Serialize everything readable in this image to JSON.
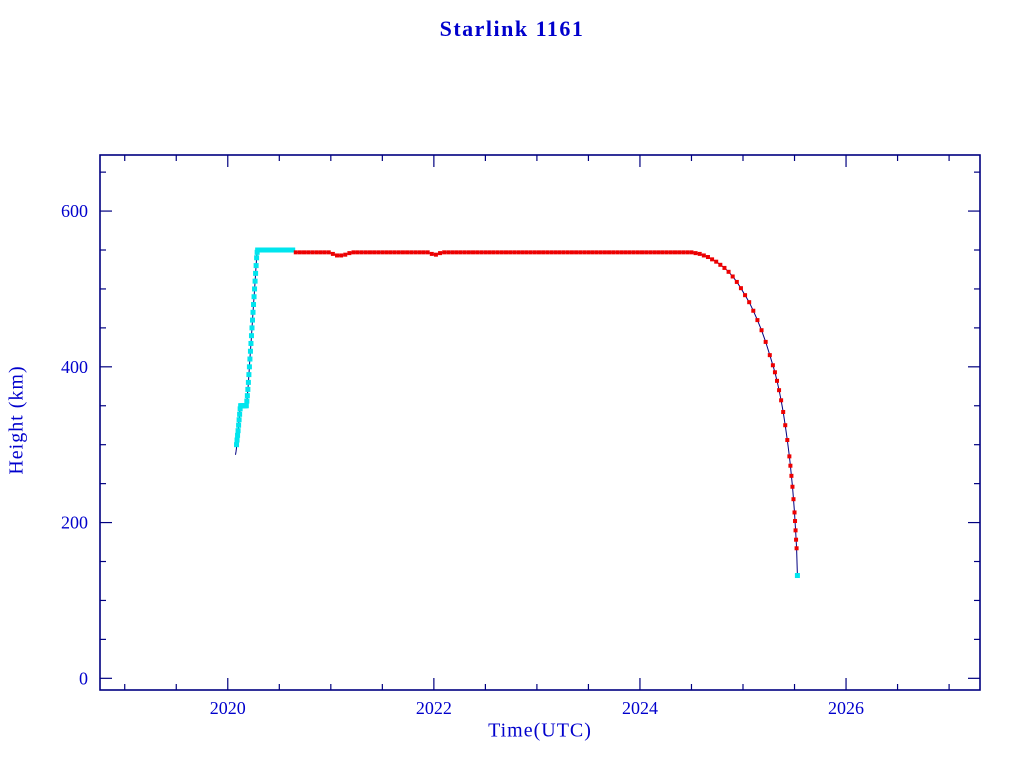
{
  "title": "Starlink 1161",
  "chart_data": {
    "type": "scatter",
    "title": "Starlink 1161",
    "xlabel": "Time(UTC)",
    "ylabel": "Height (km)",
    "xlim": [
      2018.76,
      2027.3
    ],
    "ylim": [
      -15,
      672
    ],
    "xticks": [
      2020,
      2022,
      2024,
      2026
    ],
    "yticks": [
      0,
      200,
      400,
      600
    ],
    "x_minor_step": 0.5,
    "y_minor_step": 50,
    "grid": false,
    "legend": "none",
    "axis_color": "#000080",
    "text_color": "#0000cc",
    "line_color": "#000080",
    "series": [
      {
        "name": "launch-connector",
        "color": "#000080",
        "marker": "none",
        "marker_size": 0,
        "points": [
          [
            2020.075,
            287
          ],
          [
            2020.08,
            291
          ],
          [
            2020.085,
            296
          ]
        ]
      },
      {
        "name": "orbit-raise-cyan",
        "color": "#00e5ee",
        "marker": "square",
        "marker_size": 5,
        "points": [
          [
            2020.085,
            300
          ],
          [
            2020.09,
            306
          ],
          [
            2020.095,
            312
          ],
          [
            2020.1,
            318
          ],
          [
            2020.105,
            325
          ],
          [
            2020.11,
            332
          ],
          [
            2020.115,
            339
          ],
          [
            2020.12,
            346
          ],
          [
            2020.125,
            350
          ],
          [
            2020.13,
            350
          ],
          [
            2020.14,
            350
          ],
          [
            2020.15,
            350
          ],
          [
            2020.16,
            350
          ],
          [
            2020.17,
            350
          ],
          [
            2020.18,
            350
          ],
          [
            2020.185,
            356
          ],
          [
            2020.19,
            363
          ],
          [
            2020.195,
            371
          ],
          [
            2020.2,
            380
          ],
          [
            2020.205,
            390
          ],
          [
            2020.21,
            400
          ],
          [
            2020.215,
            410
          ],
          [
            2020.22,
            420
          ],
          [
            2020.225,
            430
          ],
          [
            2020.23,
            440
          ],
          [
            2020.235,
            450
          ],
          [
            2020.24,
            460
          ],
          [
            2020.245,
            470
          ],
          [
            2020.25,
            480
          ],
          [
            2020.255,
            490
          ],
          [
            2020.26,
            500
          ],
          [
            2020.265,
            510
          ],
          [
            2020.27,
            520
          ],
          [
            2020.275,
            530
          ],
          [
            2020.28,
            540
          ],
          [
            2020.285,
            547
          ],
          [
            2020.29,
            550
          ],
          [
            2020.31,
            550
          ],
          [
            2020.33,
            550
          ],
          [
            2020.35,
            550
          ],
          [
            2020.37,
            550
          ],
          [
            2020.39,
            550
          ],
          [
            2020.41,
            550
          ],
          [
            2020.43,
            550
          ],
          [
            2020.45,
            550
          ],
          [
            2020.47,
            550
          ],
          [
            2020.49,
            550
          ],
          [
            2020.51,
            550
          ],
          [
            2020.53,
            550
          ],
          [
            2020.55,
            550
          ],
          [
            2020.57,
            550
          ],
          [
            2020.59,
            550
          ],
          [
            2020.61,
            550
          ],
          [
            2020.63,
            550
          ]
        ]
      },
      {
        "name": "station-keeping-and-decay-red",
        "color": "#ee0000",
        "marker": "square",
        "marker_size": 4,
        "points": [
          [
            2020.66,
            547
          ],
          [
            2020.7,
            547
          ],
          [
            2020.74,
            547
          ],
          [
            2020.78,
            547
          ],
          [
            2020.82,
            547
          ],
          [
            2020.86,
            547
          ],
          [
            2020.9,
            547
          ],
          [
            2020.94,
            547
          ],
          [
            2020.98,
            547
          ],
          [
            2021.02,
            545
          ],
          [
            2021.06,
            543
          ],
          [
            2021.1,
            543
          ],
          [
            2021.14,
            544
          ],
          [
            2021.18,
            546
          ],
          [
            2021.22,
            547
          ],
          [
            2021.26,
            547
          ],
          [
            2021.3,
            547
          ],
          [
            2021.34,
            547
          ],
          [
            2021.38,
            547
          ],
          [
            2021.42,
            547
          ],
          [
            2021.46,
            547
          ],
          [
            2021.5,
            547
          ],
          [
            2021.54,
            547
          ],
          [
            2021.58,
            547
          ],
          [
            2021.62,
            547
          ],
          [
            2021.66,
            547
          ],
          [
            2021.7,
            547
          ],
          [
            2021.74,
            547
          ],
          [
            2021.78,
            547
          ],
          [
            2021.82,
            547
          ],
          [
            2021.86,
            547
          ],
          [
            2021.9,
            547
          ],
          [
            2021.94,
            547
          ],
          [
            2021.98,
            545
          ],
          [
            2022.02,
            544
          ],
          [
            2022.06,
            546
          ],
          [
            2022.1,
            547
          ],
          [
            2022.14,
            547
          ],
          [
            2022.18,
            547
          ],
          [
            2022.22,
            547
          ],
          [
            2022.26,
            547
          ],
          [
            2022.3,
            547
          ],
          [
            2022.34,
            547
          ],
          [
            2022.38,
            547
          ],
          [
            2022.42,
            547
          ],
          [
            2022.46,
            547
          ],
          [
            2022.5,
            547
          ],
          [
            2022.54,
            547
          ],
          [
            2022.58,
            547
          ],
          [
            2022.62,
            547
          ],
          [
            2022.66,
            547
          ],
          [
            2022.7,
            547
          ],
          [
            2022.74,
            547
          ],
          [
            2022.78,
            547
          ],
          [
            2022.82,
            547
          ],
          [
            2022.86,
            547
          ],
          [
            2022.9,
            547
          ],
          [
            2022.94,
            547
          ],
          [
            2022.98,
            547
          ],
          [
            2023.02,
            547
          ],
          [
            2023.06,
            547
          ],
          [
            2023.1,
            547
          ],
          [
            2023.14,
            547
          ],
          [
            2023.18,
            547
          ],
          [
            2023.22,
            547
          ],
          [
            2023.26,
            547
          ],
          [
            2023.3,
            547
          ],
          [
            2023.34,
            547
          ],
          [
            2023.38,
            547
          ],
          [
            2023.42,
            547
          ],
          [
            2023.46,
            547
          ],
          [
            2023.5,
            547
          ],
          [
            2023.54,
            547
          ],
          [
            2023.58,
            547
          ],
          [
            2023.62,
            547
          ],
          [
            2023.66,
            547
          ],
          [
            2023.7,
            547
          ],
          [
            2023.74,
            547
          ],
          [
            2023.78,
            547
          ],
          [
            2023.82,
            547
          ],
          [
            2023.86,
            547
          ],
          [
            2023.9,
            547
          ],
          [
            2023.94,
            547
          ],
          [
            2023.98,
            547
          ],
          [
            2024.02,
            547
          ],
          [
            2024.06,
            547
          ],
          [
            2024.1,
            547
          ],
          [
            2024.14,
            547
          ],
          [
            2024.18,
            547
          ],
          [
            2024.22,
            547
          ],
          [
            2024.26,
            547
          ],
          [
            2024.3,
            547
          ],
          [
            2024.34,
            547
          ],
          [
            2024.38,
            547
          ],
          [
            2024.42,
            547
          ],
          [
            2024.46,
            547
          ],
          [
            2024.5,
            547
          ],
          [
            2024.54,
            546
          ],
          [
            2024.58,
            545
          ],
          [
            2024.62,
            543
          ],
          [
            2024.66,
            541
          ],
          [
            2024.7,
            538
          ],
          [
            2024.74,
            535
          ],
          [
            2024.78,
            531
          ],
          [
            2024.82,
            527
          ],
          [
            2024.86,
            522
          ],
          [
            2024.9,
            516
          ],
          [
            2024.94,
            509
          ],
          [
            2024.98,
            501
          ],
          [
            2025.02,
            492
          ],
          [
            2025.06,
            483
          ],
          [
            2025.1,
            472
          ],
          [
            2025.14,
            460
          ],
          [
            2025.18,
            447
          ],
          [
            2025.22,
            432
          ],
          [
            2025.26,
            415
          ],
          [
            2025.29,
            402
          ],
          [
            2025.31,
            393
          ],
          [
            2025.33,
            382
          ],
          [
            2025.35,
            370
          ],
          [
            2025.37,
            357
          ],
          [
            2025.39,
            342
          ],
          [
            2025.41,
            325
          ],
          [
            2025.43,
            306
          ],
          [
            2025.45,
            285
          ],
          [
            2025.46,
            273
          ],
          [
            2025.47,
            260
          ],
          [
            2025.48,
            246
          ],
          [
            2025.49,
            230
          ],
          [
            2025.5,
            213
          ],
          [
            2025.505,
            202
          ],
          [
            2025.51,
            190
          ],
          [
            2025.515,
            178
          ],
          [
            2025.52,
            167
          ]
        ]
      },
      {
        "name": "reentry-final-cyan",
        "color": "#00e5ee",
        "marker": "square",
        "marker_size": 5,
        "points": [
          [
            2025.528,
            132
          ]
        ]
      }
    ]
  }
}
